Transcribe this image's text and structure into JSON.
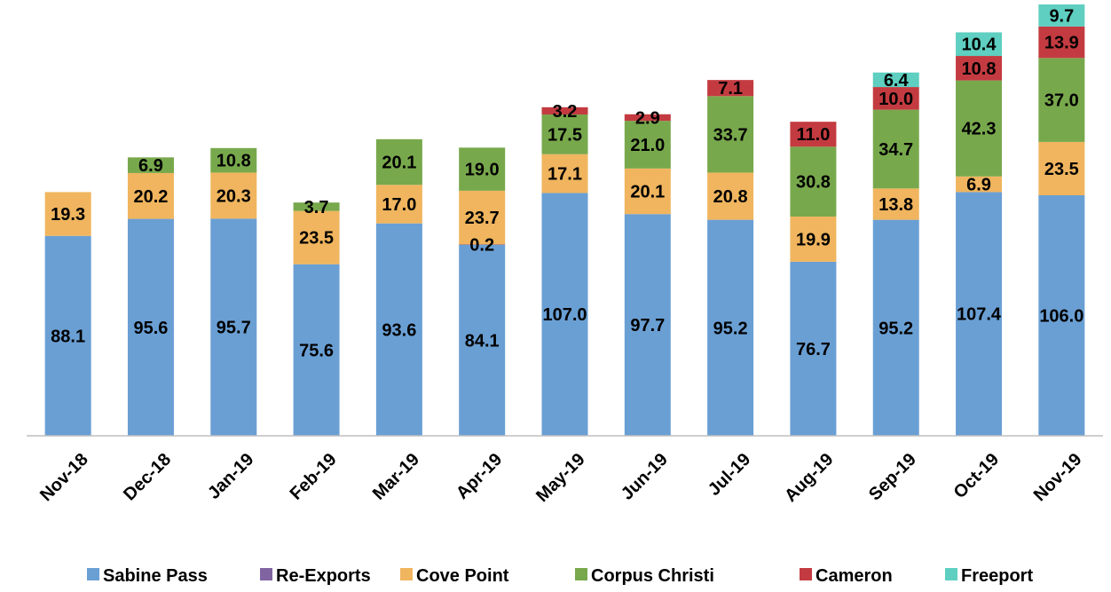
{
  "chart_data": {
    "type": "stacked_bar",
    "categories": [
      "Nov-18",
      "Dec-18",
      "Jan-19",
      "Feb-19",
      "Mar-19",
      "Apr-19",
      "May-19",
      "Jun-19",
      "Jul-19",
      "Aug-19",
      "Sep-19",
      "Oct-19",
      "Nov-19"
    ],
    "series": [
      {
        "name": "Sabine Pass",
        "color": "#6a9fd4",
        "values": [
          88.1,
          95.6,
          95.7,
          75.6,
          93.6,
          84.1,
          107.0,
          97.7,
          95.2,
          76.7,
          95.2,
          107.4,
          106.0
        ],
        "value_labels": [
          "88.1",
          "95.6",
          "95.7",
          "75.6",
          "93.6",
          "84.1",
          "107.0",
          "97.7",
          "95.2",
          "76.7",
          "95.2",
          "107.4",
          "106.0"
        ]
      },
      {
        "name": "Re-Exports",
        "color": "#8064a2",
        "values": [
          null,
          null,
          null,
          null,
          null,
          0.2,
          null,
          null,
          null,
          null,
          null,
          null,
          null
        ],
        "value_labels": [
          null,
          null,
          null,
          null,
          null,
          "0.2",
          null,
          null,
          null,
          null,
          null,
          null,
          null
        ]
      },
      {
        "name": "Cove Point",
        "color": "#f0b55e",
        "values": [
          19.3,
          20.2,
          20.3,
          23.5,
          17.0,
          23.7,
          17.1,
          20.1,
          20.8,
          19.9,
          13.8,
          6.9,
          23.5
        ],
        "value_labels": [
          "19.3",
          "20.2",
          "20.3",
          "23.5",
          "17.0",
          "23.7",
          "17.1",
          "20.1",
          "20.8",
          "19.9",
          "13.8",
          "6.9",
          "23.5"
        ]
      },
      {
        "name": "Corpus Christi",
        "color": "#78a84c",
        "values": [
          null,
          6.9,
          10.8,
          3.7,
          20.1,
          19.0,
          17.5,
          21.0,
          33.7,
          30.8,
          34.7,
          42.3,
          37.0
        ],
        "value_labels": [
          null,
          "6.9",
          "10.8",
          "3.7",
          "20.1",
          "19.0",
          "17.5",
          "21.0",
          "33.7",
          "30.8",
          "34.7",
          "42.3",
          "37.0"
        ]
      },
      {
        "name": "Cameron",
        "color": "#c33b40",
        "values": [
          null,
          null,
          null,
          null,
          null,
          null,
          3.2,
          2.9,
          7.1,
          11.0,
          10.0,
          10.8,
          13.9
        ],
        "value_labels": [
          null,
          null,
          null,
          null,
          null,
          null,
          "3.2",
          "2.9",
          "7.1",
          "11.0",
          "10.0",
          "10.8",
          "13.9"
        ]
      },
      {
        "name": "Freeport",
        "color": "#5ecfc0",
        "values": [
          null,
          null,
          null,
          null,
          null,
          null,
          null,
          null,
          null,
          null,
          6.4,
          10.4,
          9.7
        ],
        "value_labels": [
          null,
          null,
          null,
          null,
          null,
          null,
          null,
          null,
          null,
          null,
          "6.4",
          "10.4",
          "9.7"
        ]
      }
    ],
    "legend": "bottom"
  }
}
